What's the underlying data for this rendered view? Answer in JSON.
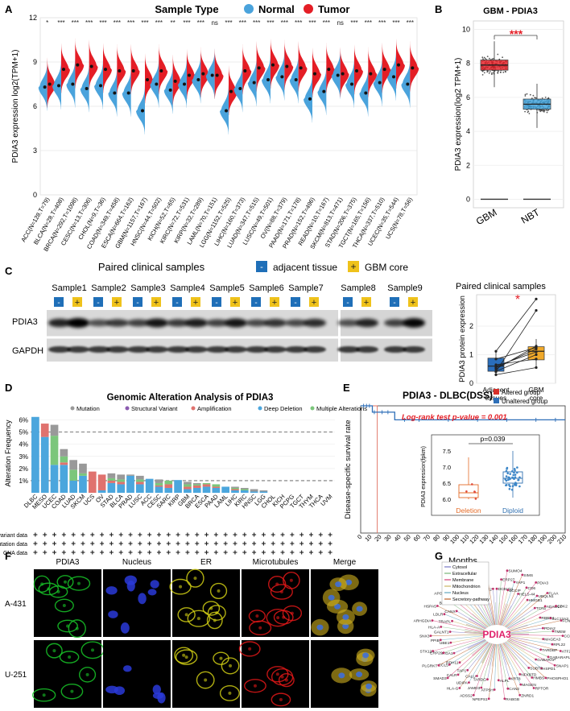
{
  "panels": {
    "A": "A",
    "B": "B",
    "C": "C",
    "D": "D",
    "E": "E",
    "F": "F",
    "G": "G"
  },
  "chart_data": [
    {
      "id": "A",
      "type": "violin",
      "title": "Sample Type",
      "legend": [
        {
          "name": "Normal",
          "color": "#4aa3dc"
        },
        {
          "name": "Tumor",
          "color": "#e41e26"
        }
      ],
      "ylabel": "PDIA3 expression log2(TPM+1)",
      "ylim": [
        0,
        12
      ],
      "yticks": [
        0,
        3,
        6,
        9,
        12
      ],
      "groups": [
        {
          "label": "ACC(N=128,T=79)",
          "sig": "*",
          "normal": 7.3,
          "tumor": 7.5
        },
        {
          "label": "BLCA(N=28,T=408)",
          "sig": "***",
          "normal": 7.4,
          "tumor": 8.5
        },
        {
          "label": "BRCA(N=292,T=1098)",
          "sig": "***",
          "normal": 7.5,
          "tumor": 8.8
        },
        {
          "label": "CESC(N=13,T=306)",
          "sig": "***",
          "normal": 7.2,
          "tumor": 8.7
        },
        {
          "label": "CHOL(N=9,T=36)",
          "sig": "***",
          "normal": 7.4,
          "tumor": 8.5
        },
        {
          "label": "COAD(N=349,T=458)",
          "sig": "***",
          "normal": 6.9,
          "tumor": 8.4
        },
        {
          "label": "ESCA(N=664,T=162)",
          "sig": "***",
          "normal": 6.9,
          "tumor": 8.4
        },
        {
          "label": "GBM(N=1157,T=167)",
          "sig": "***",
          "normal": 5.7,
          "tumor": 7.8
        },
        {
          "label": "HNSC(N=44,T=502)",
          "sig": "***",
          "normal": 7.5,
          "tumor": 8.4
        },
        {
          "label": "KICH(N=52,T=65)",
          "sig": "**",
          "normal": 7.1,
          "tumor": 7.7
        },
        {
          "label": "KIRC(N=72,T=531)",
          "sig": "***",
          "normal": 7.5,
          "tumor": 8.1
        },
        {
          "label": "KIRP(N=32,T=289)",
          "sig": "***",
          "normal": 7.8,
          "tumor": 8.2
        },
        {
          "label": "LAML(N=70,T=151)",
          "sig": "ns",
          "normal": 8.1,
          "tumor": 8.1
        },
        {
          "label": "LGG(N=1152,T=525)",
          "sig": "***",
          "normal": 5.7,
          "tumor": 7.0
        },
        {
          "label": "LIHC(N=160,T=373)",
          "sig": "***",
          "normal": 7.2,
          "tumor": 8.4
        },
        {
          "label": "LUAD(N=347,T=515)",
          "sig": "***",
          "normal": 7.6,
          "tumor": 8.6
        },
        {
          "label": "LUSC(N=49,T=501)",
          "sig": "***",
          "normal": 7.8,
          "tumor": 8.8
        },
        {
          "label": "OV(N=88,T=379)",
          "sig": "***",
          "normal": 8.0,
          "tumor": 8.7
        },
        {
          "label": "PAAD(N=171,T=178)",
          "sig": "***",
          "normal": 7.8,
          "tumor": 8.6
        },
        {
          "label": "PRAD(N=152,T=496)",
          "sig": "***",
          "normal": 6.5,
          "tumor": 8.2
        },
        {
          "label": "READ(N=10,T=167)",
          "sig": "***",
          "normal": 7.0,
          "tumor": 8.5
        },
        {
          "label": "SKCM(N=813,T=471)",
          "sig": "ns",
          "normal": 8.1,
          "tumor": 8.2
        },
        {
          "label": "STAD(N=206,T=375)",
          "sig": "***",
          "normal": 7.5,
          "tumor": 8.4
        },
        {
          "label": "TGCT(N=165,T=156)",
          "sig": "***",
          "normal": 6.9,
          "tumor": 8.2
        },
        {
          "label": "THCA(N=337,T=510)",
          "sig": "***",
          "normal": 7.6,
          "tumor": 8.5
        },
        {
          "label": "UCEC(N=35,T=544)",
          "sig": "***",
          "normal": 8.0,
          "tumor": 8.8
        },
        {
          "label": "UCS(N=78,T=56)",
          "sig": "***",
          "normal": 7.5,
          "tumor": 8.6
        }
      ]
    },
    {
      "id": "B",
      "type": "boxplot",
      "title": "GBM - PDIA3",
      "ylabel": "PDIA3 expression(log2 TPM+1)",
      "ylim": [
        -0.5,
        10.5
      ],
      "yticks": [
        0,
        2,
        4,
        6,
        8,
        10
      ],
      "significance": "***",
      "groups": [
        {
          "name": "GBM",
          "min": 6.6,
          "q1": 7.6,
          "median": 7.9,
          "q3": 8.2,
          "max": 9.3,
          "color": "#e41e26",
          "baseline": 0
        },
        {
          "name": "NBT",
          "min": 4.2,
          "q1": 5.3,
          "median": 5.6,
          "q3": 5.9,
          "max": 6.8,
          "color": "#3fa2dc",
          "baseline": 0
        }
      ]
    },
    {
      "id": "C",
      "type": "boxplot-paired",
      "title": "Paired clinical samples",
      "ylabel": "PDIA3 protein expression",
      "ylim": [
        0,
        3.1
      ],
      "yticks": [
        0,
        1,
        2
      ],
      "significance": "*",
      "groups": [
        {
          "name": "Adjacent tissues",
          "min": 0.25,
          "q1": 0.42,
          "median": 0.6,
          "q3": 0.88,
          "max": 1.12,
          "color": "#2a6ebb"
        },
        {
          "name": "GBM core",
          "min": 0.52,
          "q1": 0.82,
          "median": 1.12,
          "q3": 1.28,
          "max": 1.55,
          "color": "#f0a92a"
        }
      ],
      "pairs": [
        [
          0.3,
          0.55
        ],
        [
          0.42,
          1.0
        ],
        [
          0.55,
          1.2
        ],
        [
          0.6,
          1.1
        ],
        [
          0.65,
          0.85
        ],
        [
          0.85,
          1.25
        ],
        [
          1.12,
          2.95
        ],
        [
          0.4,
          2.55
        ],
        [
          0.5,
          1.3
        ]
      ]
    },
    {
      "id": "D",
      "type": "bar",
      "stacked": true,
      "title": "Genomic Alteration Analysis of PDIA3",
      "ylabel": "Alteration Frequency",
      "ylim": [
        0,
        6.5
      ],
      "yticks": [
        1,
        2,
        3,
        4,
        5,
        6
      ],
      "dashed_lines": [
        1,
        5
      ],
      "legend": [
        "Mutation",
        "Structural Variant",
        "Amplification",
        "Deep Deletion",
        "Multiple Alterations"
      ],
      "legend_colors": [
        "#999999",
        "#8b5bb0",
        "#e0726e",
        "#4ba6dd",
        "#7bc67b"
      ],
      "categories": [
        "DLBC",
        "MESO",
        "UCEC",
        "COAD",
        "LUAD",
        "SKCM",
        "UCS",
        "OV",
        "STAD",
        "BLCA",
        "PRAD",
        "LUSC",
        "ACC",
        "CESC",
        "SARC",
        "KIRP",
        "GBM",
        "BRCA",
        "ESCA",
        "PAAD",
        "LAML",
        "LIHC",
        "KIRC",
        "HNSC",
        "LGG",
        "CHOL",
        "KICH",
        "PCPG",
        "TGCT",
        "THYM",
        "THCA",
        "UVM"
      ],
      "series": [
        {
          "name": "Mutation",
          "values": [
            0,
            0,
            0.9,
            0.6,
            0.8,
            0.8,
            0,
            0,
            0.4,
            0.4,
            0.1,
            0.3,
            0,
            0.3,
            0,
            0,
            0.2,
            0.1,
            0,
            0,
            0,
            0.1,
            0.1,
            0.2,
            0.1,
            0,
            0,
            0,
            0,
            0,
            0,
            0
          ]
        },
        {
          "name": "Structural Variant",
          "values": [
            0,
            0,
            0,
            0,
            0,
            0,
            0,
            0,
            0,
            0,
            0,
            0,
            0,
            0,
            0,
            0,
            0,
            0,
            0,
            0,
            0,
            0,
            0,
            0,
            0,
            0,
            0,
            0,
            0,
            0,
            0,
            0
          ]
        },
        {
          "name": "Amplification",
          "values": [
            0,
            1.1,
            0,
            0.2,
            0,
            0,
            1.75,
            1.3,
            0.2,
            0.2,
            0,
            0.2,
            0,
            0.1,
            0.3,
            0,
            0.2,
            0.2,
            0.2,
            0.1,
            0,
            0.1,
            0,
            0,
            0,
            0,
            0,
            0,
            0,
            0,
            0,
            0
          ]
        },
        {
          "name": "Deep Deletion",
          "values": [
            6.25,
            4.6,
            2.3,
            2.3,
            1.0,
            1.4,
            0,
            0.2,
            0.8,
            0.7,
            1.4,
            0.7,
            1.15,
            0.5,
            0.4,
            1.05,
            0.3,
            0.4,
            0.5,
            0.4,
            0.5,
            0.2,
            0.2,
            0.1,
            0.1,
            0,
            0,
            0,
            0,
            0,
            0,
            0
          ]
        },
        {
          "name": "Multiple Alterations",
          "values": [
            0,
            0,
            2.4,
            0.5,
            0.9,
            0.2,
            0,
            0,
            0.2,
            0.2,
            0,
            0.2,
            0,
            0.2,
            0.3,
            0,
            0.2,
            0.1,
            0.1,
            0.2,
            0,
            0.1,
            0.1,
            0,
            0,
            0,
            0,
            0,
            0,
            0,
            0,
            0
          ]
        }
      ],
      "track_labels": [
        "Structural variant data",
        "Mutation data",
        "CNA data"
      ]
    },
    {
      "id": "E",
      "type": "line",
      "title": "PDIA3 - DLBC(DSS)",
      "xlabel": "Months",
      "ylabel": "Disease-specific survival rate",
      "xlim": [
        0,
        210
      ],
      "xticks": [
        0,
        10,
        20,
        30,
        40,
        50,
        60,
        70,
        80,
        90,
        100,
        110,
        120,
        130,
        140,
        150,
        160,
        170,
        180,
        190,
        200,
        210
      ],
      "ylim": [
        0,
        1
      ],
      "yticks": [
        0.0,
        0.2,
        0.4,
        0.6,
        0.8,
        1.0
      ],
      "legend": [
        {
          "name": "Altered group",
          "color": "#d7302a"
        },
        {
          "name": "Unaltered group",
          "color": "#2e6fb8"
        }
      ],
      "annotation": "Log-rank test p-value = 0.001",
      "series": [
        {
          "name": "Altered group",
          "x": [
            0,
            17,
            17
          ],
          "y": [
            1.0,
            1.0,
            0.0
          ]
        },
        {
          "name": "Unaltered group",
          "x": [
            0,
            12,
            12,
            35,
            35,
            210
          ],
          "y": [
            1.0,
            1.0,
            0.95,
            0.95,
            0.89,
            0.89
          ]
        }
      ],
      "inset": {
        "type": "boxplot",
        "annotation": "p=0.039",
        "ylabel": "PDIA3 expression(fpkm)",
        "ylim": [
          5.8,
          7.7
        ],
        "yticks": [
          6.0,
          6.5,
          7.0,
          7.5
        ],
        "groups": [
          {
            "name": "Deletion",
            "min": 6.0,
            "q1": 6.05,
            "median": 6.2,
            "q3": 6.45,
            "max": 7.3,
            "color": "#e46b27"
          },
          {
            "name": "Diploid",
            "min": 6.05,
            "q1": 6.5,
            "median": 6.65,
            "q3": 6.85,
            "max": 7.5,
            "color": "#2f6fb0"
          }
        ]
      }
    }
  ],
  "C_blot": {
    "title": "Paired clinical samples",
    "legend_adjacent": "adjacent tissue",
    "legend_core": "GBM core",
    "legend_adjacent_symbol": "-",
    "legend_core_symbol": "+",
    "samples": [
      "Sample1",
      "Sample2",
      "Sample3",
      "Sample4",
      "Sample5",
      "Sample6",
      "Sample7",
      "Sample8",
      "Sample9"
    ],
    "rows": [
      "PDIA3",
      "GAPDH"
    ],
    "pdia3_intensity": [
      [
        0.75,
        1.0
      ],
      [
        0.45,
        0.6
      ],
      [
        0.55,
        0.85
      ],
      [
        0.6,
        0.8
      ],
      [
        0.55,
        0.85
      ],
      [
        0.5,
        0.65
      ],
      [
        0.5,
        0.7
      ],
      [
        0.45,
        0.75
      ],
      [
        0.55,
        0.95
      ]
    ]
  },
  "F_micro": {
    "columns": [
      "PDIA3",
      "Nucleus",
      "ER",
      "Microtubules",
      "Merge"
    ],
    "rows": [
      "A-431",
      "U-251"
    ],
    "colors": [
      "#18c428",
      "#2a3ad8",
      "#cfcc14",
      "#e01818",
      "#d6c43a"
    ]
  },
  "G_network": {
    "center": "PDIA3",
    "legend": [
      "Cytosol",
      "Extracellular",
      "Membrane",
      "Mitochondrion",
      "Nucleus",
      "Secretory-pathway"
    ],
    "legend_colors": [
      "#8b8bcc",
      "#8cc08c",
      "#d95c8a",
      "#d3c07a",
      "#79b4c8",
      "#c77b4a"
    ],
    "genes": [
      "DCBLD1",
      "ERP27",
      "SUMO4",
      "BCCIP",
      "YAP1",
      "SIMS",
      "HELS-44",
      "CD6",
      "PDIA3",
      "HMGB1",
      "UBQLN1",
      "FLAA",
      "TCN1",
      "ADAM17",
      "CDK2",
      "RBBP4",
      "SLC12A3",
      "FCNDP2",
      "PDIA2",
      "TMEM",
      "CCDC6",
      "MAGEA3",
      "RPL22",
      "ATF2",
      "TARDBP",
      "GABARAPL1",
      "SNAP1",
      "GABARAP",
      "HSPD1",
      "PHOSPHO1",
      "SUBT2",
      "HMBS",
      "RPTOR",
      "NFKBTD",
      "MAGEN",
      "ZNRD1",
      "KRT8",
      "CAN2",
      "RABGB",
      "ALPL",
      "ATP5H",
      "NPEPS1",
      "TARDG",
      "JAMD3",
      "ADSS2",
      "CALU",
      "UDIPA",
      "HLA-G",
      "TAP1",
      "CALR",
      "SMAD3",
      "RDH11",
      "CCL5",
      "PLGRKT",
      "ITGA1",
      "ERP29",
      "STX12",
      "UBE1",
      "PPIB",
      "SNX3",
      "GALNT1",
      "HLA-A",
      "ARHGDIA",
      "TRAPL",
      "LDLR",
      "HSPA5",
      "CANX",
      "BVES",
      "APOB",
      "MAPK1",
      "STAT3",
      "TMEM1",
      "PSMB9",
      "NRP5",
      "NSP3",
      "APP",
      "KIF5A",
      "PLOD2",
      "MIF2"
    ]
  }
}
